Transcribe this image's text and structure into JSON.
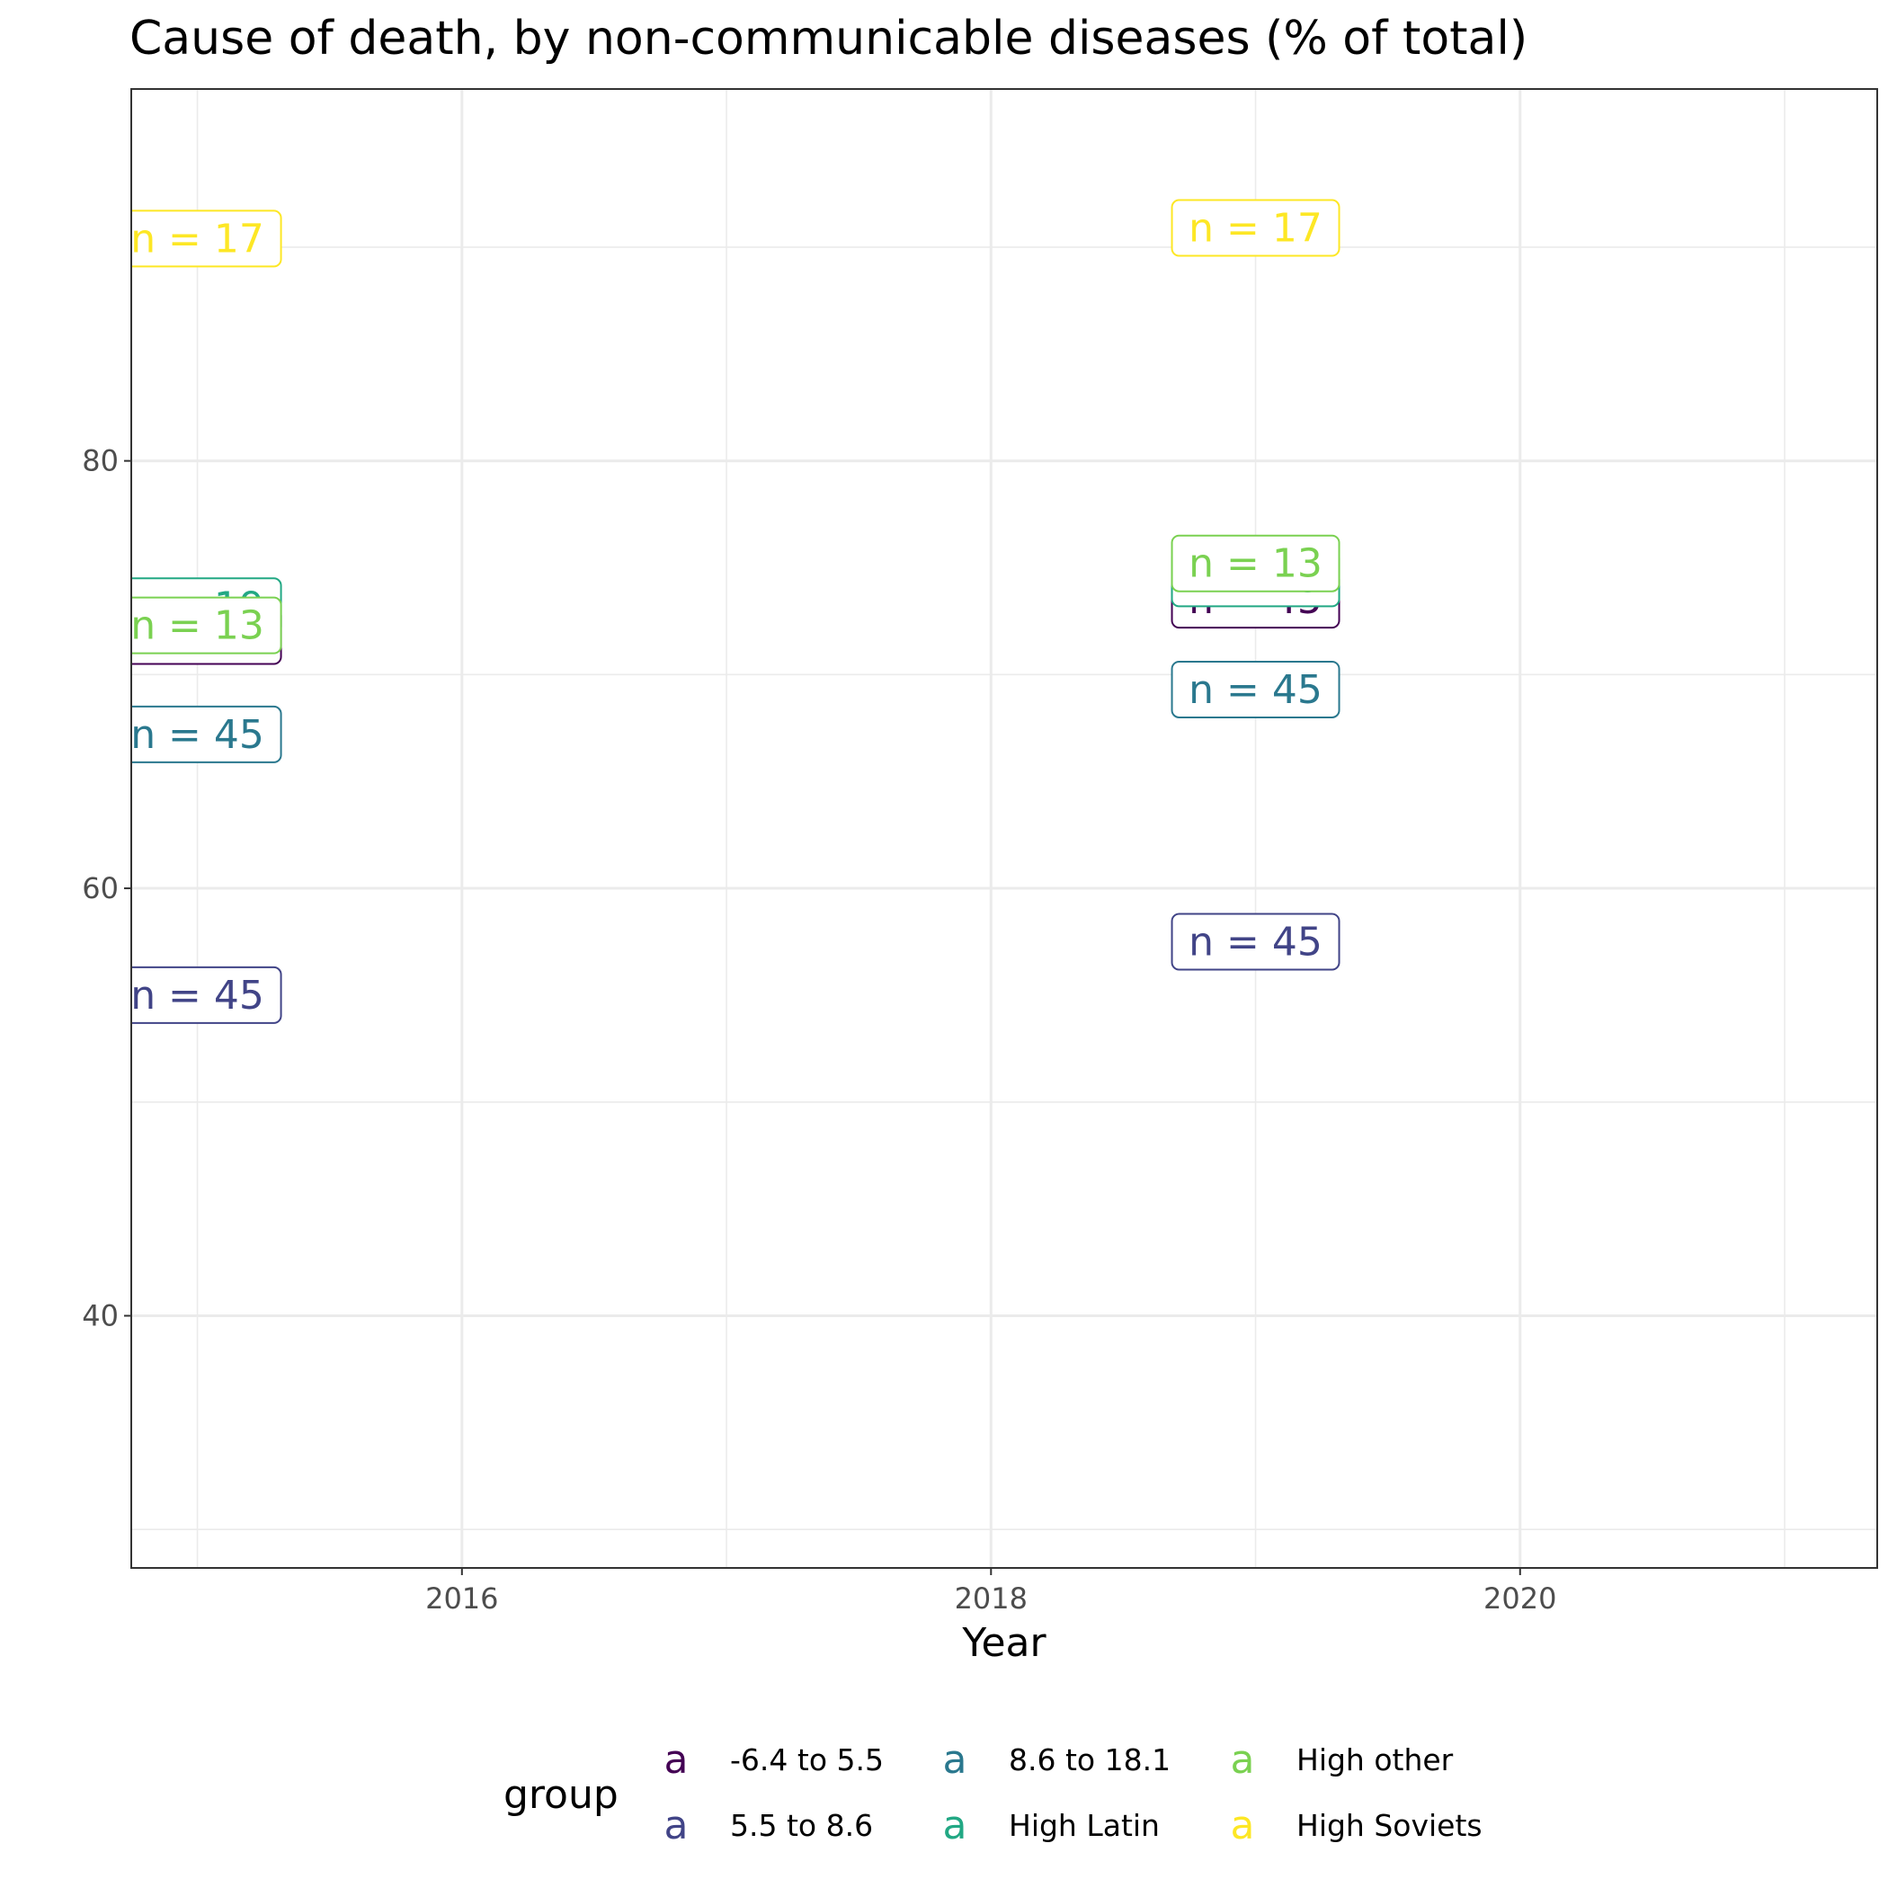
{
  "chart_data": {
    "type": "scatter",
    "title": "Cause of death, by non-communicable diseases (% of total)",
    "xlabel": "Year",
    "ylabel": "",
    "xlim": [
      2014.75,
      2021.35
    ],
    "ylim": [
      28.2,
      97.4
    ],
    "x_major_ticks": [
      2016,
      2018,
      2020
    ],
    "x_minor_ticks": [
      2015,
      2017,
      2019,
      2021
    ],
    "y_major_ticks": [
      40,
      60,
      80
    ],
    "y_minor_ticks": [
      30,
      50,
      70,
      90
    ],
    "grid": true,
    "legend": {
      "title": "group",
      "position": "bottom",
      "key_glyph": "a",
      "entries": [
        "-6.4 to 5.5",
        "5.5 to 8.6",
        "8.6 to 18.1",
        "High Latin",
        "High other",
        "High Soviets"
      ]
    },
    "series": [
      {
        "name": "-6.4 to 5.5",
        "color": "#440154",
        "points": [
          {
            "x": 2015,
            "y": 71.8,
            "label": "n = 45"
          },
          {
            "x": 2019,
            "y": 73.5,
            "label": "n = 45"
          }
        ]
      },
      {
        "name": "5.5 to 8.6",
        "color": "#414487",
        "points": [
          {
            "x": 2015,
            "y": 55.0,
            "label": "n = 45"
          },
          {
            "x": 2019,
            "y": 57.5,
            "label": "n = 45"
          }
        ]
      },
      {
        "name": "8.6 to 18.1",
        "color": "#2A788E",
        "points": [
          {
            "x": 2015,
            "y": 67.2,
            "label": "n = 45"
          },
          {
            "x": 2019,
            "y": 69.3,
            "label": "n = 45"
          }
        ]
      },
      {
        "name": "High Latin",
        "color": "#22A884",
        "points": [
          {
            "x": 2015,
            "y": 73.2,
            "label": "n = 19"
          },
          {
            "x": 2019,
            "y": 74.5,
            "label": "n = 19"
          }
        ]
      },
      {
        "name": "High other",
        "color": "#7AD151",
        "points": [
          {
            "x": 2015,
            "y": 72.3,
            "label": "n = 13"
          },
          {
            "x": 2019,
            "y": 75.2,
            "label": "n = 13"
          }
        ]
      },
      {
        "name": "High Soviets",
        "color": "#FDE725",
        "points": [
          {
            "x": 2015,
            "y": 90.4,
            "label": "n = 17"
          },
          {
            "x": 2019,
            "y": 90.9,
            "label": "n = 17"
          }
        ]
      }
    ]
  }
}
